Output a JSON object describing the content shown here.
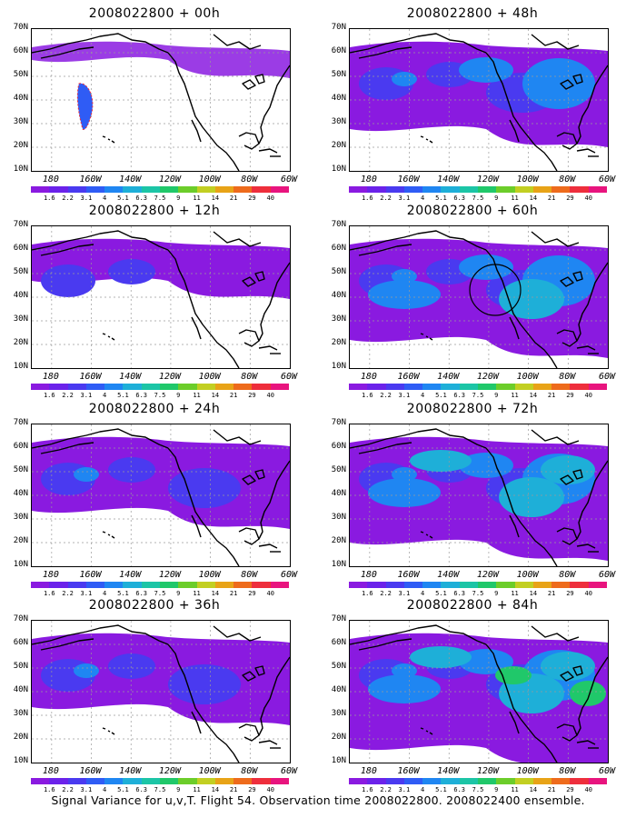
{
  "caption": "Signal Variance for u,v,T. Flight 54. Observation time 2008022800. 2008022400 ensemble.",
  "lat_labels": [
    "70N",
    "60N",
    "50N",
    "40N",
    "30N",
    "20N",
    "10N"
  ],
  "lon_labels": [
    "180",
    "160W",
    "140W",
    "120W",
    "100W",
    "80W",
    "60W"
  ],
  "colorbar": {
    "labels": [
      "1.6",
      "2.2",
      "3.1",
      "4",
      "5.1",
      "6.3",
      "7.5",
      "9",
      "11",
      "14",
      "21",
      "29",
      "40"
    ],
    "colors": [
      "#8a1ae0",
      "#6b22ea",
      "#4a3af0",
      "#2f5cf5",
      "#1f86f2",
      "#1eafd8",
      "#1cc5a6",
      "#20c86a",
      "#6ccd2a",
      "#c2cf22",
      "#e8a317",
      "#ee6b1c",
      "#ee2e3c",
      "#e8147e"
    ]
  },
  "panels": [
    {
      "title": "2008022800 + 00h",
      "level": 0
    },
    {
      "title": "2008022800 + 48h",
      "level": 3
    },
    {
      "title": "2008022800 + 12h",
      "level": 1
    },
    {
      "title": "2008022800 + 60h",
      "level": 4
    },
    {
      "title": "2008022800 + 24h",
      "level": 2
    },
    {
      "title": "2008022800 + 72h",
      "level": 5
    },
    {
      "title": "2008022800 + 36h",
      "level": 2
    },
    {
      "title": "2008022800 + 84h",
      "level": 6
    }
  ]
}
